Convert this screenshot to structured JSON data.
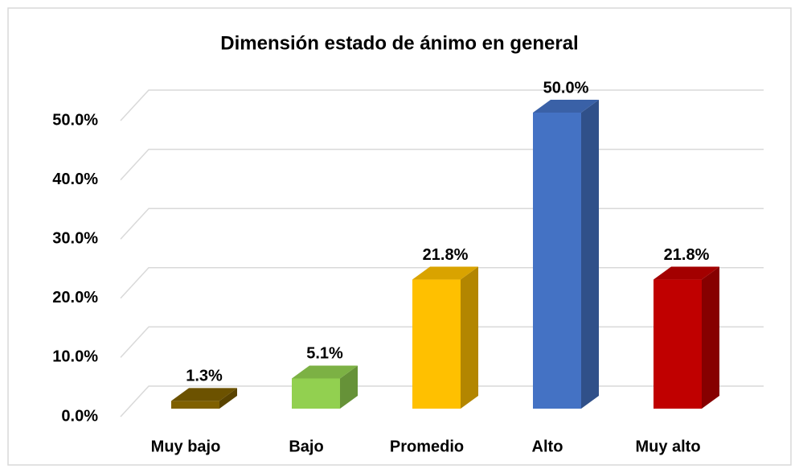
{
  "chart_data": {
    "type": "bar3d",
    "title": "Dimensión estado de ánimo en general",
    "categories": [
      "Muy bajo",
      "Bajo",
      "Promedio",
      "Alto",
      "Muy alto"
    ],
    "values": [
      1.3,
      5.1,
      21.8,
      50.0,
      21.8
    ],
    "value_labels": [
      "1.3%",
      "5.1%",
      "21.8%",
      "50.0%",
      "21.8%"
    ],
    "colors": [
      "#7f6000",
      "#92d050",
      "#ffc000",
      "#4472c4",
      "#c00000"
    ],
    "ylim": [
      0,
      50
    ],
    "yticks": [
      {
        "value": 0,
        "label": "0.0%"
      },
      {
        "value": 10,
        "label": "10.0%"
      },
      {
        "value": 20,
        "label": "20.0%"
      },
      {
        "value": 30,
        "label": "30.0%"
      },
      {
        "value": 40,
        "label": "40.0%"
      },
      {
        "value": 50,
        "label": "50.0%"
      }
    ],
    "grid": true
  }
}
